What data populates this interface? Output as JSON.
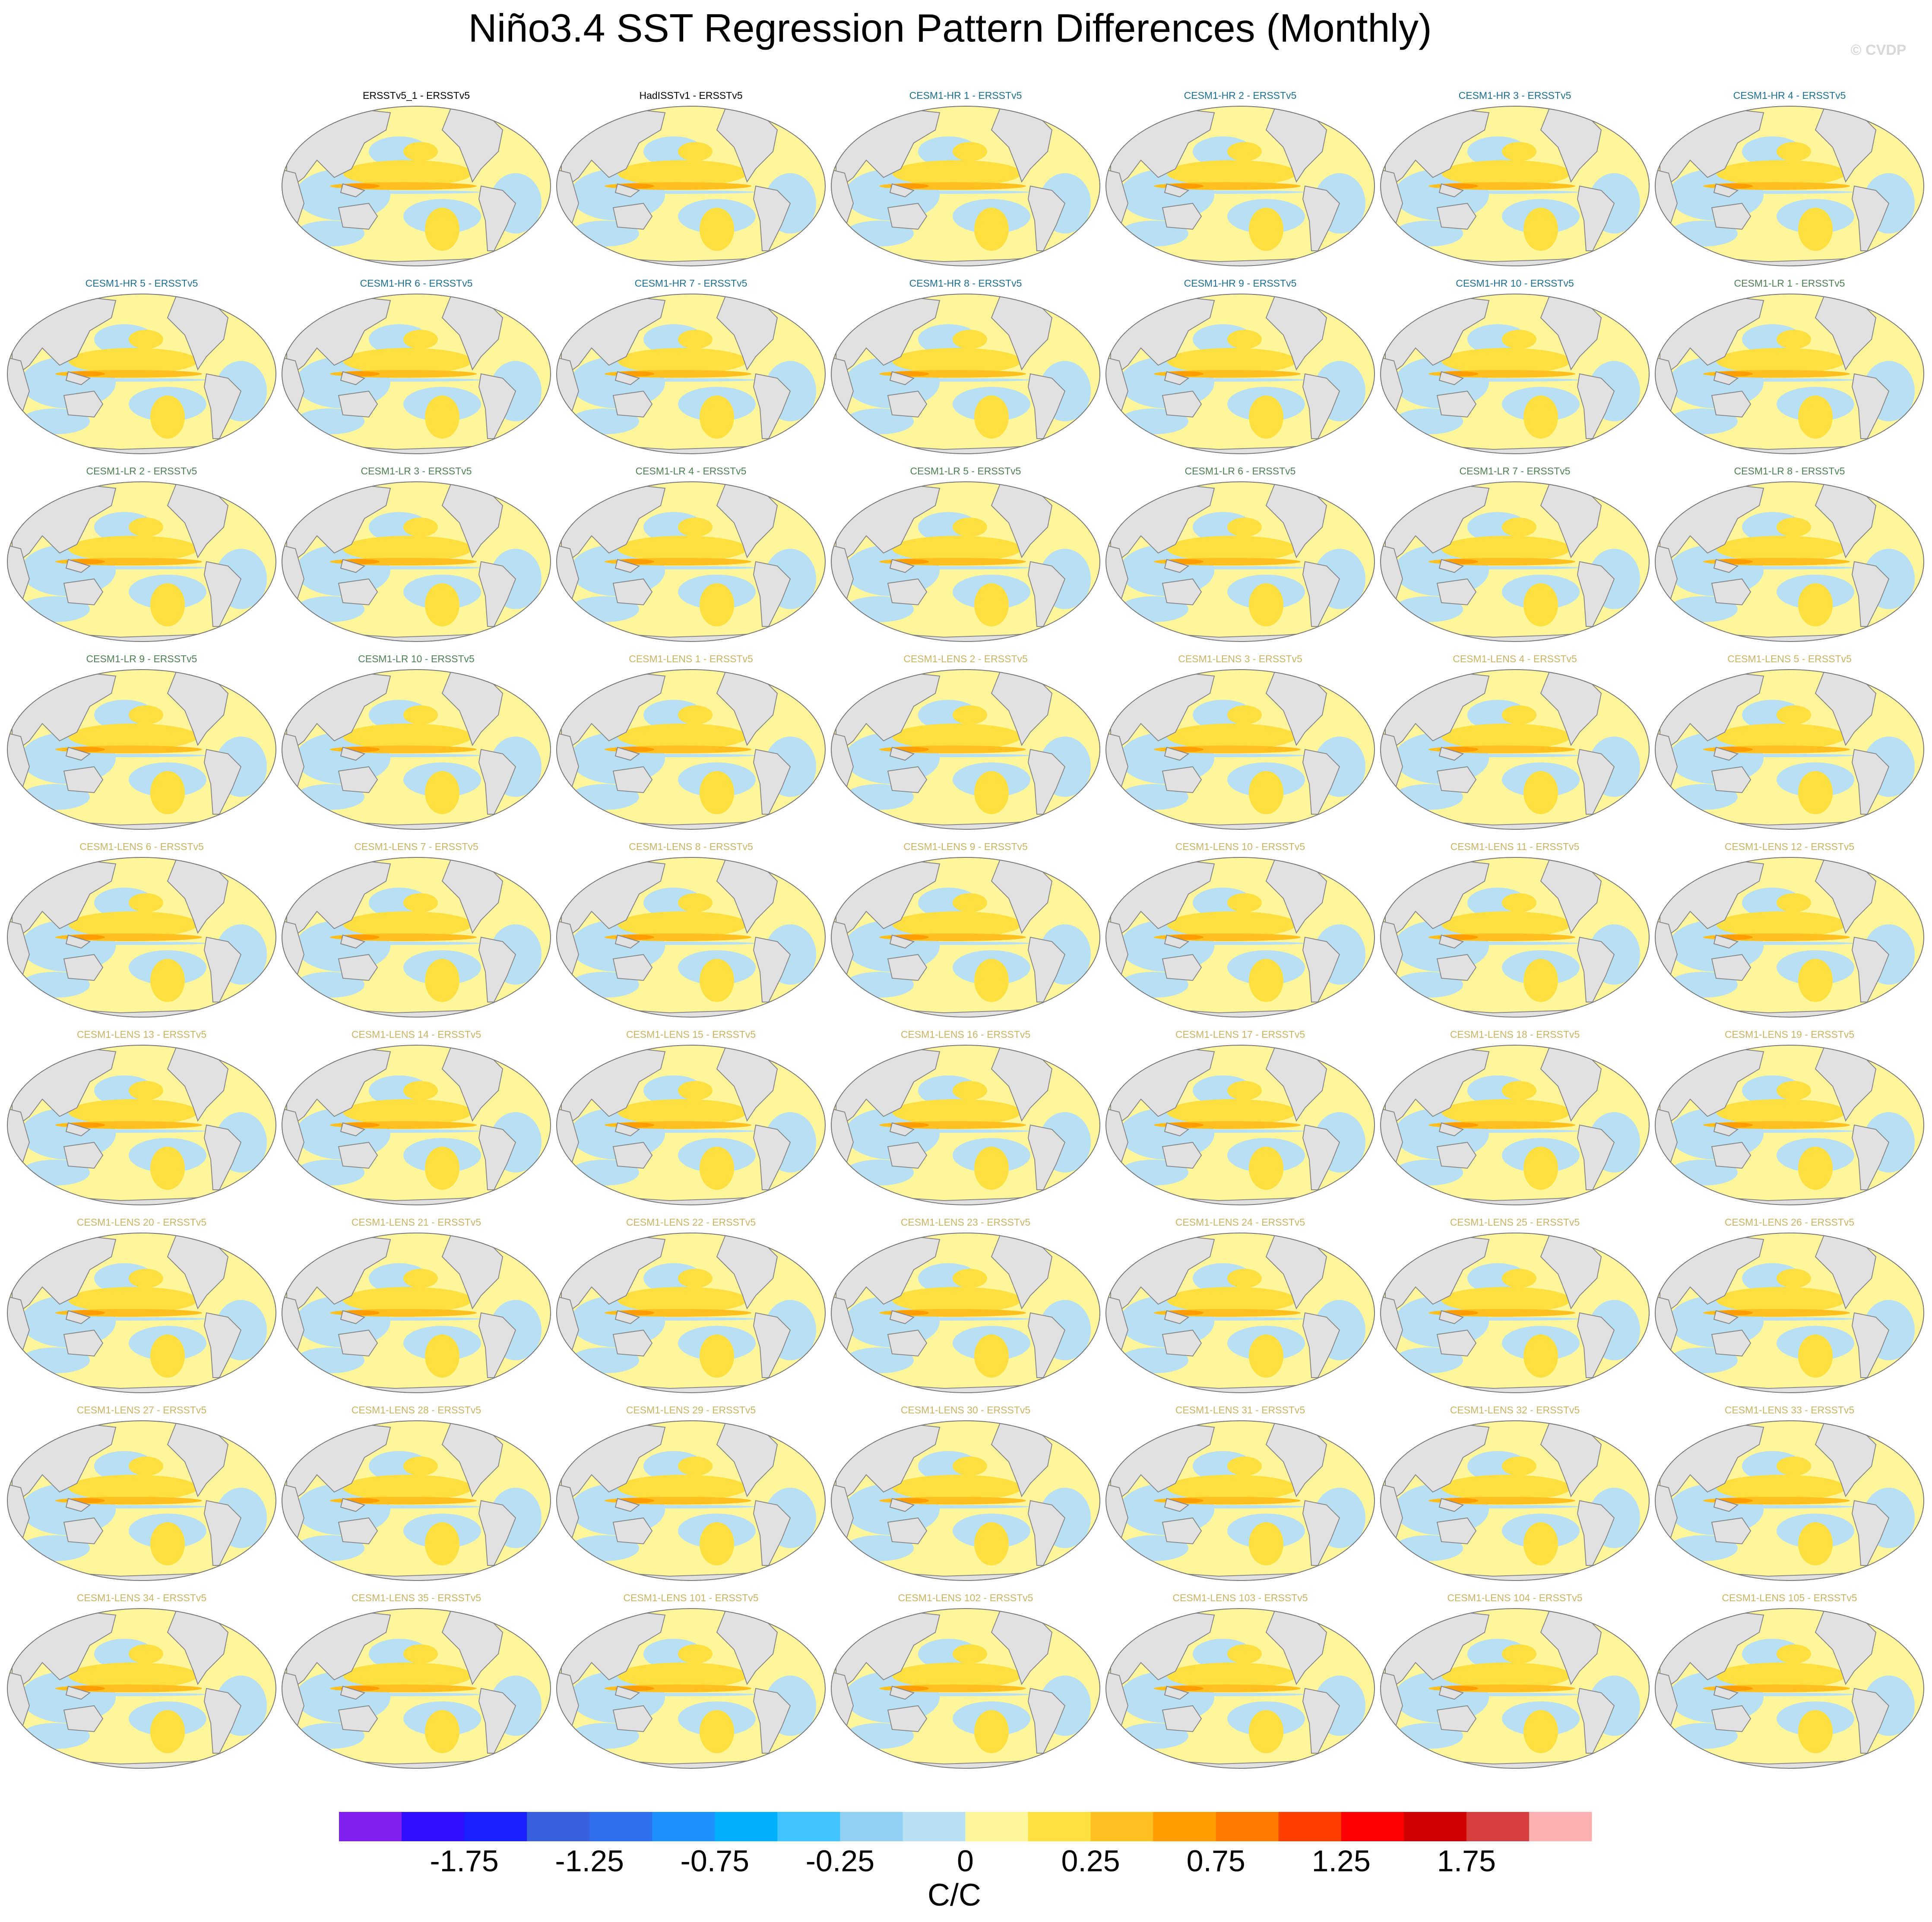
{
  "title": "Niño3.4 SST Regression Pattern Differences (Monthly)",
  "watermark": "© CVDP",
  "panels": [
    {
      "title": "ERSSTv5_1 - ERSSTv5",
      "color": "#000000"
    },
    {
      "title": "HadISSTv1 - ERSSTv5",
      "color": "#000000"
    },
    {
      "title": "CESM1-HR 1 - ERSSTv5",
      "color": "#1f6f94"
    },
    {
      "title": "CESM1-HR 2 - ERSSTv5",
      "color": "#1f6f94"
    },
    {
      "title": "CESM1-HR 3 - ERSSTv5",
      "color": "#1f6f94"
    },
    {
      "title": "CESM1-HR 4 - ERSSTv5",
      "color": "#1f6f94"
    },
    {
      "title": "CESM1-HR 5 - ERSSTv5",
      "color": "#1f6f94"
    },
    {
      "title": "CESM1-HR 6 - ERSSTv5",
      "color": "#1f6f94"
    },
    {
      "title": "CESM1-HR 7 - ERSSTv5",
      "color": "#1f6f94"
    },
    {
      "title": "CESM1-HR 8 - ERSSTv5",
      "color": "#1f6f94"
    },
    {
      "title": "CESM1-HR 9 - ERSSTv5",
      "color": "#1f6f94"
    },
    {
      "title": "CESM1-HR 10 - ERSSTv5",
      "color": "#1f6f94"
    },
    {
      "title": "CESM1-LR 1 - ERSSTv5",
      "color": "#4f7f55"
    },
    {
      "title": "CESM1-LR 2 - ERSSTv5",
      "color": "#4f7f55"
    },
    {
      "title": "CESM1-LR 3 - ERSSTv5",
      "color": "#4f7f55"
    },
    {
      "title": "CESM1-LR 4 - ERSSTv5",
      "color": "#4f7f55"
    },
    {
      "title": "CESM1-LR 5 - ERSSTv5",
      "color": "#4f7f55"
    },
    {
      "title": "CESM1-LR 6 - ERSSTv5",
      "color": "#4f7f55"
    },
    {
      "title": "CESM1-LR 7 - ERSSTv5",
      "color": "#4f7f55"
    },
    {
      "title": "CESM1-LR 8 - ERSSTv5",
      "color": "#4f7f55"
    },
    {
      "title": "CESM1-LR 9 - ERSSTv5",
      "color": "#4f7f55"
    },
    {
      "title": "CESM1-LR 10 - ERSSTv5",
      "color": "#4f7f55"
    },
    {
      "title": "CESM1-LENS 1 - ERSSTv5",
      "color": "#c9b466"
    },
    {
      "title": "CESM1-LENS 2 - ERSSTv5",
      "color": "#c9b466"
    },
    {
      "title": "CESM1-LENS 3 - ERSSTv5",
      "color": "#c9b466"
    },
    {
      "title": "CESM1-LENS 4 - ERSSTv5",
      "color": "#c9b466"
    },
    {
      "title": "CESM1-LENS 5 - ERSSTv5",
      "color": "#c9b466"
    },
    {
      "title": "CESM1-LENS 6 - ERSSTv5",
      "color": "#c9b466"
    },
    {
      "title": "CESM1-LENS 7 - ERSSTv5",
      "color": "#c9b466"
    },
    {
      "title": "CESM1-LENS 8 - ERSSTv5",
      "color": "#c9b466"
    },
    {
      "title": "CESM1-LENS 9 - ERSSTv5",
      "color": "#c9b466"
    },
    {
      "title": "CESM1-LENS 10 - ERSSTv5",
      "color": "#c9b466"
    },
    {
      "title": "CESM1-LENS 11 - ERSSTv5",
      "color": "#c9b466"
    },
    {
      "title": "CESM1-LENS 12 - ERSSTv5",
      "color": "#c9b466"
    },
    {
      "title": "CESM1-LENS 13 - ERSSTv5",
      "color": "#c9b466"
    },
    {
      "title": "CESM1-LENS 14 - ERSSTv5",
      "color": "#c9b466"
    },
    {
      "title": "CESM1-LENS 15 - ERSSTv5",
      "color": "#c9b466"
    },
    {
      "title": "CESM1-LENS 16 - ERSSTv5",
      "color": "#c9b466"
    },
    {
      "title": "CESM1-LENS 17 - ERSSTv5",
      "color": "#c9b466"
    },
    {
      "title": "CESM1-LENS 18 - ERSSTv5",
      "color": "#c9b466"
    },
    {
      "title": "CESM1-LENS 19 - ERSSTv5",
      "color": "#c9b466"
    },
    {
      "title": "CESM1-LENS 20 - ERSSTv5",
      "color": "#c9b466"
    },
    {
      "title": "CESM1-LENS 21 - ERSSTv5",
      "color": "#c9b466"
    },
    {
      "title": "CESM1-LENS 22 - ERSSTv5",
      "color": "#c9b466"
    },
    {
      "title": "CESM1-LENS 23 - ERSSTv5",
      "color": "#c9b466"
    },
    {
      "title": "CESM1-LENS 24 - ERSSTv5",
      "color": "#c9b466"
    },
    {
      "title": "CESM1-LENS 25 - ERSSTv5",
      "color": "#c9b466"
    },
    {
      "title": "CESM1-LENS 26 - ERSSTv5",
      "color": "#c9b466"
    },
    {
      "title": "CESM1-LENS 27 - ERSSTv5",
      "color": "#c9b466"
    },
    {
      "title": "CESM1-LENS 28 - ERSSTv5",
      "color": "#c9b466"
    },
    {
      "title": "CESM1-LENS 29 - ERSSTv5",
      "color": "#c9b466"
    },
    {
      "title": "CESM1-LENS 30 - ERSSTv5",
      "color": "#c9b466"
    },
    {
      "title": "CESM1-LENS 31 - ERSSTv5",
      "color": "#c9b466"
    },
    {
      "title": "CESM1-LENS 32 - ERSSTv5",
      "color": "#c9b466"
    },
    {
      "title": "CESM1-LENS 33 - ERSSTv5",
      "color": "#c9b466"
    },
    {
      "title": "CESM1-LENS 34 - ERSSTv5",
      "color": "#c9b466"
    },
    {
      "title": "CESM1-LENS 35 - ERSSTv5",
      "color": "#c9b466"
    },
    {
      "title": "CESM1-LENS 101 - ERSSTv5",
      "color": "#c9b466"
    },
    {
      "title": "CESM1-LENS 102 - ERSSTv5",
      "color": "#c9b466"
    },
    {
      "title": "CESM1-LENS 103 - ERSSTv5",
      "color": "#c9b466"
    },
    {
      "title": "CESM1-LENS 104 - ERSSTv5",
      "color": "#c9b466"
    },
    {
      "title": "CESM1-LENS 105 - ERSSTv5",
      "color": "#c9b466"
    }
  ],
  "colorbar": {
    "colors": [
      "#8020f0",
      "#3010ff",
      "#1a20ff",
      "#3a60e0",
      "#2e70ee",
      "#1e90ff",
      "#00b0ff",
      "#40c4ff",
      "#90d0f0",
      "#b8e0f5",
      "#fff59a",
      "#ffe040",
      "#ffc020",
      "#ff9c00",
      "#ff7a00",
      "#ff4000",
      "#ff0000",
      "#d00000",
      "#d84040",
      "#ffb0b0"
    ],
    "ticks": [
      -1.75,
      -1.25,
      -0.75,
      -0.25,
      0,
      0.25,
      0.75,
      1.25,
      1.75
    ],
    "label": "C/C"
  }
}
